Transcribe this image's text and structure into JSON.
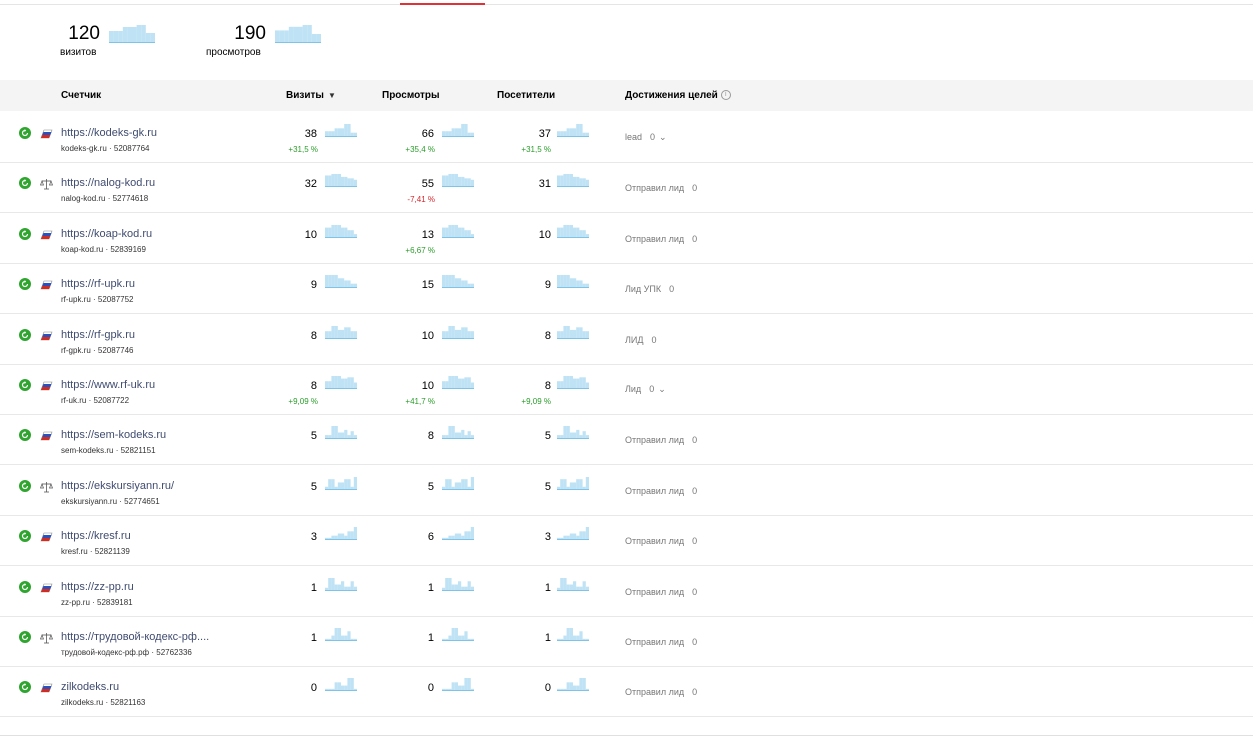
{
  "summary": [
    {
      "value": "120",
      "label": "визитов",
      "spark": [
        6,
        6,
        6,
        8,
        8,
        8,
        9,
        9,
        5,
        5
      ]
    },
    {
      "value": "190",
      "label": "просмотров",
      "spark": [
        7,
        7,
        7,
        9,
        9,
        9,
        10,
        10,
        5,
        5
      ]
    }
  ],
  "columns": {
    "counter": "Счетчик",
    "visits": "Визиты",
    "views": "Просмотры",
    "visitors": "Посетители",
    "goals": "Достижения целей"
  },
  "colors": {
    "accent": "#e0303a",
    "positive": "#2a9d2a",
    "negative": "#d9262c",
    "spark": "#bfe3f5",
    "status": "#2fa52f",
    "link": "#404c70"
  },
  "rows": [
    {
      "icon": "flag-icon",
      "url": "https://kodeks-gk.ru",
      "domain": "kodeks-gk.ru",
      "id": "52087764",
      "visits": "38",
      "visits_delta": "+31,5 %",
      "visits_delta_type": "pos",
      "views": "66",
      "views_delta": "+35,4 %",
      "views_delta_type": "pos",
      "visitors": "37",
      "visitors_delta": "+31,5 %",
      "visitors_delta_type": "pos",
      "goal_name": "lead",
      "goal_value": "0",
      "goal_dropdown": true,
      "spark": [
        4,
        4,
        4,
        6,
        6,
        6,
        9,
        9,
        3,
        3
      ]
    },
    {
      "icon": "scales-icon",
      "url": "https://nalog-kod.ru",
      "domain": "nalog-kod.ru",
      "id": "52774618",
      "visits": "32",
      "visits_delta": "",
      "visits_delta_type": "",
      "views": "55",
      "views_delta": "-7,41 %",
      "views_delta_type": "neg",
      "visitors": "31",
      "visitors_delta": "",
      "visitors_delta_type": "",
      "goal_name": "Отправил лид",
      "goal_value": "0",
      "goal_dropdown": false,
      "spark": [
        8,
        8,
        9,
        9,
        9,
        7,
        7,
        6,
        6,
        5
      ]
    },
    {
      "icon": "flag-icon",
      "url": "https://koap-kod.ru",
      "domain": "koap-kod.ru",
      "id": "52839169",
      "visits": "10",
      "visits_delta": "",
      "visits_delta_type": "",
      "views": "13",
      "views_delta": "+6,67 %",
      "views_delta_type": "pos",
      "visitors": "10",
      "visitors_delta": "",
      "visitors_delta_type": "",
      "goal_name": "Отправил лид",
      "goal_value": "0",
      "goal_dropdown": false,
      "spark": [
        8,
        8,
        10,
        10,
        10,
        8,
        8,
        6,
        6,
        3
      ]
    },
    {
      "icon": "flag-icon",
      "url": "https://rf-upk.ru",
      "domain": "rf-upk.ru",
      "id": "52087752",
      "visits": "9",
      "visits_delta": "",
      "visits_delta_type": "",
      "views": "15",
      "views_delta": "",
      "views_delta_type": "",
      "visitors": "9",
      "visitors_delta": "",
      "visitors_delta_type": "",
      "goal_name": "Лид УПК",
      "goal_value": "0",
      "goal_dropdown": false,
      "spark": [
        12,
        12,
        12,
        12,
        9,
        9,
        7,
        7,
        4,
        4
      ]
    },
    {
      "icon": "flag-icon",
      "url": "https://rf-gpk.ru",
      "domain": "rf-gpk.ru",
      "id": "52087746",
      "visits": "8",
      "visits_delta": "",
      "visits_delta_type": "",
      "views": "10",
      "views_delta": "",
      "views_delta_type": "",
      "visitors": "8",
      "visitors_delta": "",
      "visitors_delta_type": "",
      "goal_name": "ЛИД",
      "goal_value": "0",
      "goal_dropdown": false,
      "spark": [
        6,
        6,
        10,
        10,
        7,
        7,
        9,
        9,
        6,
        6
      ]
    },
    {
      "icon": "flag-icon",
      "url": "https://www.rf-uk.ru",
      "domain": "rf-uk.ru",
      "id": "52087722",
      "visits": "8",
      "visits_delta": "+9,09 %",
      "visits_delta_type": "pos",
      "views": "10",
      "views_delta": "+41,7 %",
      "views_delta_type": "pos",
      "visitors": "8",
      "visitors_delta": "+9,09 %",
      "visitors_delta_type": "pos",
      "goal_name": "Лид",
      "goal_value": "0",
      "goal_dropdown": true,
      "spark": [
        6,
        6,
        10,
        10,
        10,
        8,
        8,
        9,
        9,
        5
      ]
    },
    {
      "icon": "flag-icon",
      "url": "https://sem-kodeks.ru",
      "domain": "sem-kodeks.ru",
      "id": "52821151",
      "visits": "5",
      "visits_delta": "",
      "visits_delta_type": "",
      "views": "8",
      "views_delta": "",
      "views_delta_type": "",
      "visitors": "5",
      "visitors_delta": "",
      "visitors_delta_type": "",
      "goal_name": "Отправил лид",
      "goal_value": "0",
      "goal_dropdown": false,
      "spark": [
        3,
        3,
        10,
        10,
        5,
        5,
        7,
        3,
        6,
        3
      ]
    },
    {
      "icon": "scales-icon",
      "url": "https://ekskursiyann.ru/",
      "domain": "ekskursiyann.ru",
      "id": "52774651",
      "visits": "5",
      "visits_delta": "",
      "visits_delta_type": "",
      "views": "5",
      "views_delta": "",
      "views_delta_type": "",
      "visitors": "5",
      "visitors_delta": "",
      "visitors_delta_type": "",
      "goal_name": "Отправил лид",
      "goal_value": "0",
      "goal_dropdown": false,
      "spark": [
        3,
        10,
        10,
        3,
        7,
        7,
        10,
        10,
        3,
        12
      ]
    },
    {
      "icon": "flag-icon",
      "url": "https://kresf.ru",
      "domain": "kresf.ru",
      "id": "52821139",
      "visits": "3",
      "visits_delta": "",
      "visits_delta_type": "",
      "views": "6",
      "views_delta": "",
      "views_delta_type": "",
      "visitors": "3",
      "visitors_delta": "",
      "visitors_delta_type": "",
      "goal_name": "Отправил лид",
      "goal_value": "0",
      "goal_dropdown": false,
      "spark": [
        2,
        2,
        4,
        4,
        6,
        6,
        4,
        8,
        8,
        12
      ]
    },
    {
      "icon": "flag-icon",
      "url": "https://zz-pp.ru",
      "domain": "zz-pp.ru",
      "id": "52839181",
      "visits": "1",
      "visits_delta": "",
      "visits_delta_type": "",
      "views": "1",
      "views_delta": "",
      "views_delta_type": "",
      "visitors": "1",
      "visitors_delta": "",
      "visitors_delta_type": "",
      "goal_name": "Отправил лид",
      "goal_value": "0",
      "goal_dropdown": false,
      "spark": [
        3,
        12,
        12,
        6,
        6,
        9,
        4,
        4,
        9,
        4
      ]
    },
    {
      "icon": "scales-icon",
      "url": "https://трудовой-кодекс-рф....",
      "domain": "трудовой-кодекс-рф.рф",
      "id": "52762336",
      "visits": "1",
      "visits_delta": "",
      "visits_delta_type": "",
      "views": "1",
      "views_delta": "",
      "views_delta_type": "",
      "visitors": "1",
      "visitors_delta": "",
      "visitors_delta_type": "",
      "goal_name": "Отправил лид",
      "goal_value": "0",
      "goal_dropdown": false,
      "spark": [
        2,
        2,
        5,
        12,
        12,
        5,
        5,
        9,
        2,
        2
      ]
    },
    {
      "icon": "flag-icon",
      "url": "zilkodeks.ru",
      "domain": "zilkodeks.ru",
      "id": "52821163",
      "visits": "0",
      "visits_delta": "",
      "visits_delta_type": "",
      "views": "0",
      "views_delta": "",
      "views_delta_type": "",
      "visitors": "0",
      "visitors_delta": "",
      "visitors_delta_type": "",
      "goal_name": "Отправил лид",
      "goal_value": "0",
      "goal_dropdown": false,
      "spark": [
        2,
        2,
        2,
        8,
        8,
        5,
        5,
        12,
        12,
        2
      ]
    }
  ]
}
